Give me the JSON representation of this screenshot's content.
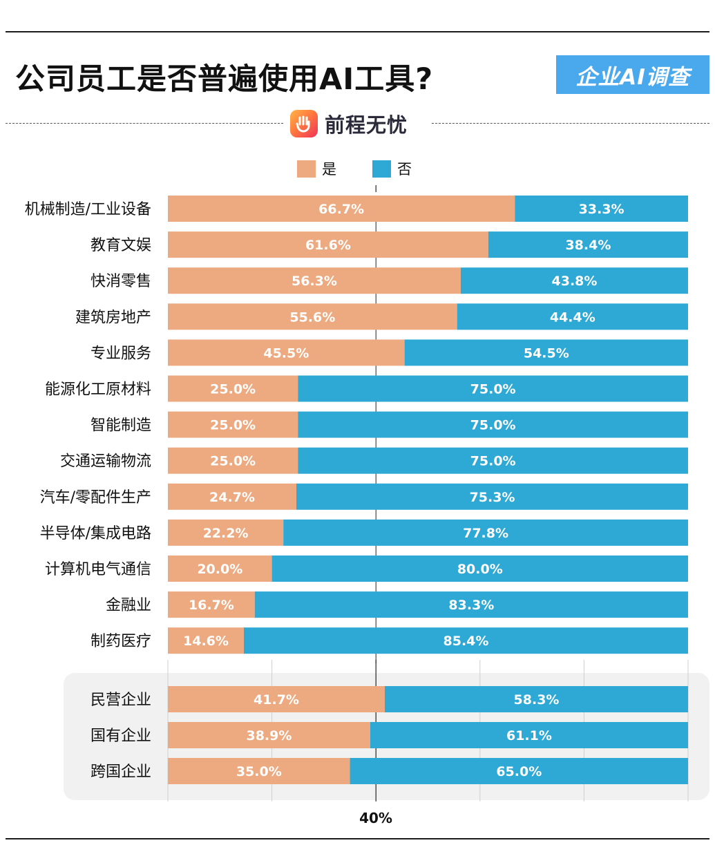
{
  "header": {
    "title": "公司员工是否普遍使用AI工具?",
    "badge": "企业AI调查",
    "logo_text": "前程无忧",
    "logo_icon": "hand-logo-icon"
  },
  "colors": {
    "yes": "#EDAA80",
    "no": "#2EA9D6",
    "badge": "#4AA8EC"
  },
  "chart_data": {
    "type": "bar",
    "orientation": "horizontal",
    "stacked": true,
    "normalized": true,
    "categories": [
      "机械制造/工业设备",
      "教育文娱",
      "快消零售",
      "建筑房地产",
      "专业服务",
      "能源化工原材料",
      "智能制造",
      "交通运输物流",
      "汽车/零配件生产",
      "半导体/集成电路",
      "计算机电气通信",
      "金融业",
      "制药医疗"
    ],
    "series": [
      {
        "name": "是",
        "values": [
          66.7,
          61.6,
          56.3,
          55.6,
          45.5,
          25.0,
          25.0,
          25.0,
          24.7,
          22.2,
          20.0,
          16.7,
          14.6
        ],
        "labels": [
          "66.7%",
          "61.6%",
          "56.3%",
          "55.6%",
          "45.5%",
          "25.0%",
          "25.0%",
          "25.0%",
          "24.7%",
          "22.2%",
          "20.0%",
          "16.7%",
          "14.6%"
        ]
      },
      {
        "name": "否",
        "values": [
          33.3,
          38.4,
          43.8,
          44.4,
          54.5,
          75.0,
          75.0,
          75.0,
          75.3,
          77.8,
          80.0,
          83.3,
          85.4
        ],
        "labels": [
          "33.3%",
          "38.4%",
          "43.8%",
          "44.4%",
          "54.5%",
          "75.0%",
          "75.0%",
          "75.0%",
          "75.3%",
          "77.8%",
          "80.0%",
          "83.3%",
          "85.4%"
        ]
      }
    ],
    "group": {
      "categories": [
        "民营企业",
        "国有企业",
        "跨国企业"
      ],
      "series": [
        {
          "name": "是",
          "values": [
            41.7,
            38.9,
            35.0
          ],
          "labels": [
            "41.7%",
            "38.9%",
            "35.0%"
          ]
        },
        {
          "name": "否",
          "values": [
            58.3,
            61.1,
            65.0
          ],
          "labels": [
            "58.3%",
            "61.1%",
            "65.0%"
          ]
        }
      ]
    },
    "xlim": [
      0,
      100
    ],
    "grid_ticks": [
      0,
      20,
      40,
      60,
      80,
      100
    ],
    "reference_value": 40,
    "xtick_label": "40%",
    "legend_position": "top-center"
  }
}
